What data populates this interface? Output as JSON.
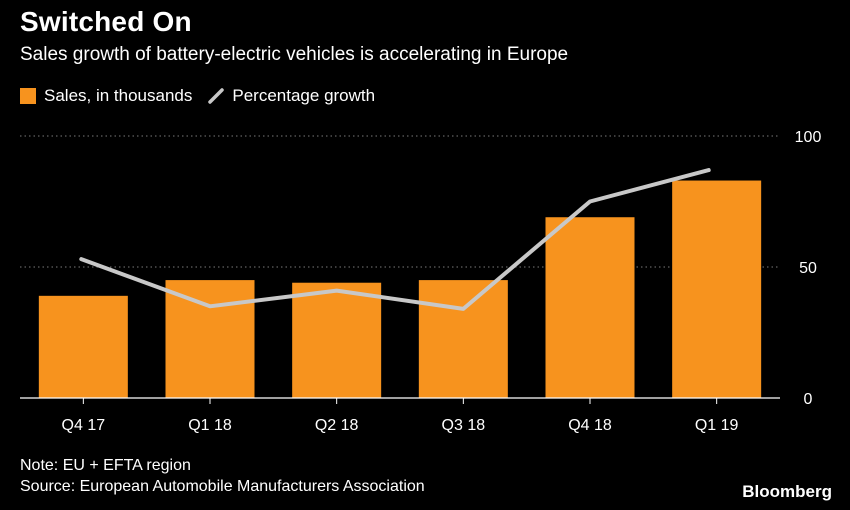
{
  "title": "Switched On",
  "subtitle": "Sales growth of battery-electric vehicles is accelerating in Europe",
  "legend": {
    "bars_label": "Sales, in thousands",
    "line_label": "Percentage growth"
  },
  "colors": {
    "bar": "#f7931e",
    "line": "#c8c8c8",
    "background": "#000000",
    "text": "#ffffff",
    "grid": "#7a7a7a"
  },
  "chart_data": {
    "type": "bar",
    "title": "Switched On",
    "subtitle": "Sales growth of battery-electric vehicles is accelerating in Europe",
    "categories": [
      "Q4 17",
      "Q1 18",
      "Q2 18",
      "Q3 18",
      "Q4 18",
      "Q1 19"
    ],
    "series": [
      {
        "name": "Sales, in thousands",
        "type": "bar",
        "values": [
          39,
          45,
          44,
          45,
          69,
          83
        ]
      },
      {
        "name": "Percentage growth",
        "type": "line",
        "values": [
          53,
          35,
          41,
          34,
          75,
          87
        ]
      }
    ],
    "y_ticks": [
      0,
      50,
      100
    ],
    "ylim": [
      0,
      100
    ],
    "yaxis_side": "right",
    "grid": true,
    "legend_position": "top-left"
  },
  "footer": {
    "note": "Note: EU + EFTA region",
    "source": "Source: European Automobile Manufacturers Association",
    "brand": "Bloomberg"
  }
}
